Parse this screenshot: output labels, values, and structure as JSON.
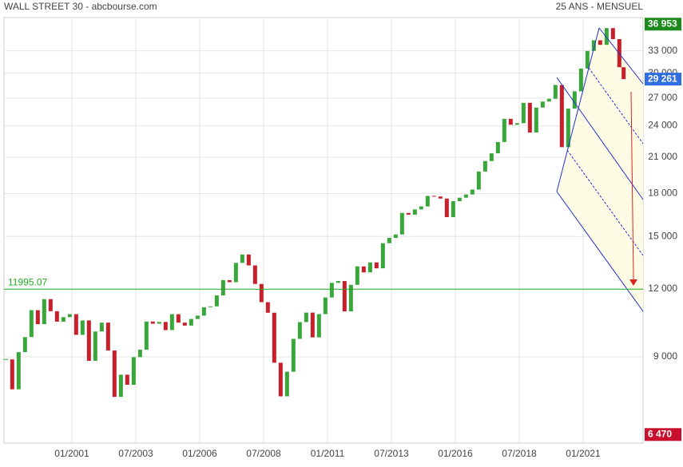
{
  "chart_data": {
    "type": "candlestick",
    "title": "WALL STREET 30 - abcbourse.com",
    "subtitle": "25 ANS - MENSUEL",
    "log_scale": true,
    "grid": true,
    "up_color": "#3aa53a",
    "down_color": "#c8202a",
    "ylim": [
      6240,
      38000
    ],
    "yticks": [
      {
        "value": 9000,
        "label": "9 000"
      },
      {
        "value": 12000,
        "label": "12 000"
      },
      {
        "value": 15000,
        "label": "15 000"
      },
      {
        "value": 18000,
        "label": "18 000"
      },
      {
        "value": 21000,
        "label": "21 000"
      },
      {
        "value": 24000,
        "label": "24 000"
      },
      {
        "value": 27000,
        "label": "27 000"
      },
      {
        "value": 30000,
        "label": "30 000"
      },
      {
        "value": 33000,
        "label": "33 000"
      }
    ],
    "xticks": [
      "01/2001",
      "07/2003",
      "01/2006",
      "07/2008",
      "01/2011",
      "07/2013",
      "01/2016",
      "07/2018",
      "01/2021"
    ],
    "x": [
      "06/1998",
      "09/1998",
      "12/1998",
      "03/1999",
      "06/1999",
      "09/1999",
      "12/1999",
      "03/2000",
      "06/2000",
      "09/2000",
      "12/2000",
      "03/2001",
      "06/2001",
      "09/2001",
      "12/2001",
      "03/2002",
      "06/2002",
      "09/2002",
      "12/2002",
      "03/2003",
      "06/2003",
      "09/2003",
      "12/2003",
      "03/2004",
      "06/2004",
      "09/2004",
      "12/2004",
      "03/2005",
      "06/2005",
      "09/2005",
      "12/2005",
      "03/2006",
      "06/2006",
      "09/2006",
      "12/2006",
      "03/2007",
      "06/2007",
      "09/2007",
      "12/2007",
      "03/2008",
      "06/2008",
      "09/2008",
      "12/2008",
      "03/2009",
      "06/2009",
      "09/2009",
      "12/2009",
      "03/2010",
      "06/2010",
      "09/2010",
      "12/2010",
      "03/2011",
      "06/2011",
      "09/2011",
      "12/2011",
      "03/2012",
      "06/2012",
      "09/2012",
      "12/2012",
      "03/2013",
      "06/2013",
      "09/2013",
      "12/2013",
      "03/2014",
      "06/2014",
      "09/2014",
      "12/2014",
      "03/2015",
      "06/2015",
      "09/2015",
      "12/2015",
      "03/2016",
      "06/2016",
      "09/2016",
      "12/2016",
      "03/2017",
      "06/2017",
      "09/2017",
      "12/2017",
      "03/2018",
      "06/2018",
      "09/2018",
      "12/2018",
      "03/2019",
      "06/2019",
      "09/2019",
      "12/2019",
      "03/2020",
      "06/2020",
      "09/2020",
      "12/2020",
      "03/2021",
      "06/2021",
      "09/2021",
      "12/2021",
      "03/2022",
      "06/2022",
      "08/2022"
    ],
    "values": [
      8900,
      7840,
      9180,
      9786,
      10970,
      10337,
      11497,
      10922,
      10448,
      10651,
      10787,
      9879,
      10502,
      8848,
      10021,
      10404,
      9243,
      7592,
      8342,
      7992,
      8985,
      9275,
      10453,
      10357,
      10435,
      10080,
      10783,
      10404,
      10275,
      10569,
      10718,
      11109,
      11150,
      11679,
      12463,
      12354,
      13409,
      13896,
      13265,
      12263,
      11350,
      10851,
      8776,
      7609,
      8447,
      9712,
      10428,
      10857,
      9774,
      10788,
      11578,
      12320,
      12414,
      10913,
      12218,
      13212,
      12880,
      13437,
      13104,
      14579,
      14910,
      15130,
      16577,
      16458,
      16827,
      17043,
      17823,
      17776,
      17620,
      16285,
      17425,
      17685,
      17930,
      18308,
      19763,
      20663,
      21350,
      22405,
      24719,
      24103,
      24271,
      26458,
      23327,
      25929,
      26600,
      26917,
      28538,
      21917,
      25813,
      27782,
      30606,
      32982,
      34503,
      33844,
      36338,
      34678,
      30775,
      29261
    ],
    "high": {
      "value": 36953,
      "label": "36 953"
    },
    "low": {
      "value": 6470,
      "label": "6 470"
    },
    "last": {
      "value": 29261,
      "label": "29 261"
    },
    "hline": 11995.07
  }
}
